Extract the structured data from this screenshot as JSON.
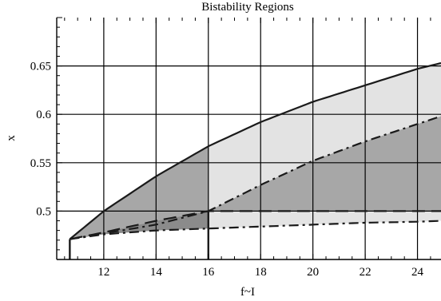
{
  "chart_data": {
    "type": "area",
    "title": "Bistability Regions",
    "xlabel": "f~I",
    "ylabel": "x",
    "xlim": [
      10.2,
      24.9
    ],
    "ylim": [
      0.45,
      0.7
    ],
    "xticks": [
      12,
      14,
      16,
      18,
      20,
      22,
      24
    ],
    "yticks": [
      0.5,
      0.55,
      0.6,
      0.65
    ],
    "xtick_labels": [
      "12",
      "14",
      "16",
      "18",
      "20",
      "22",
      "24"
    ],
    "ytick_labels": [
      "0.5",
      "0.55",
      "0.6",
      "0.65"
    ],
    "grid": true,
    "series": [
      {
        "style": "solid",
        "x": [
          10.7,
          12,
          14,
          16,
          18,
          20,
          22,
          24,
          24.9
        ],
        "y": [
          0.471,
          0.5,
          0.536,
          0.567,
          0.592,
          0.613,
          0.63,
          0.647,
          0.653
        ]
      },
      {
        "style": "dash-dot",
        "x": [
          10.7,
          14,
          16,
          18,
          20,
          22,
          24,
          24.9
        ],
        "y": [
          0.471,
          0.486,
          0.5,
          0.527,
          0.552,
          0.572,
          0.59,
          0.598
        ]
      },
      {
        "style": "long-dash",
        "x": [
          10.7,
          12,
          14,
          16,
          18,
          20,
          22,
          24,
          24.9
        ],
        "y": [
          0.471,
          0.478,
          0.49,
          0.5,
          0.5,
          0.5,
          0.5,
          0.5,
          0.5
        ]
      },
      {
        "style": "dash-dot",
        "x": [
          10.7,
          12,
          14,
          16,
          18,
          20,
          22,
          24,
          24.9
        ],
        "y": [
          0.471,
          0.476,
          0.48,
          0.482,
          0.484,
          0.486,
          0.488,
          0.489,
          0.49
        ]
      }
    ],
    "vertical_boundaries": [
      {
        "x": 10.7,
        "y_top": 0.471
      },
      {
        "x": 16,
        "y_top": 0.5
      }
    ],
    "colors": {
      "light_region": "#e3e3e3",
      "dark_region": "#a7a7a7",
      "darker_region": "#8b8b8b",
      "grid": "#000000",
      "curve": "#1a1a1a"
    }
  }
}
